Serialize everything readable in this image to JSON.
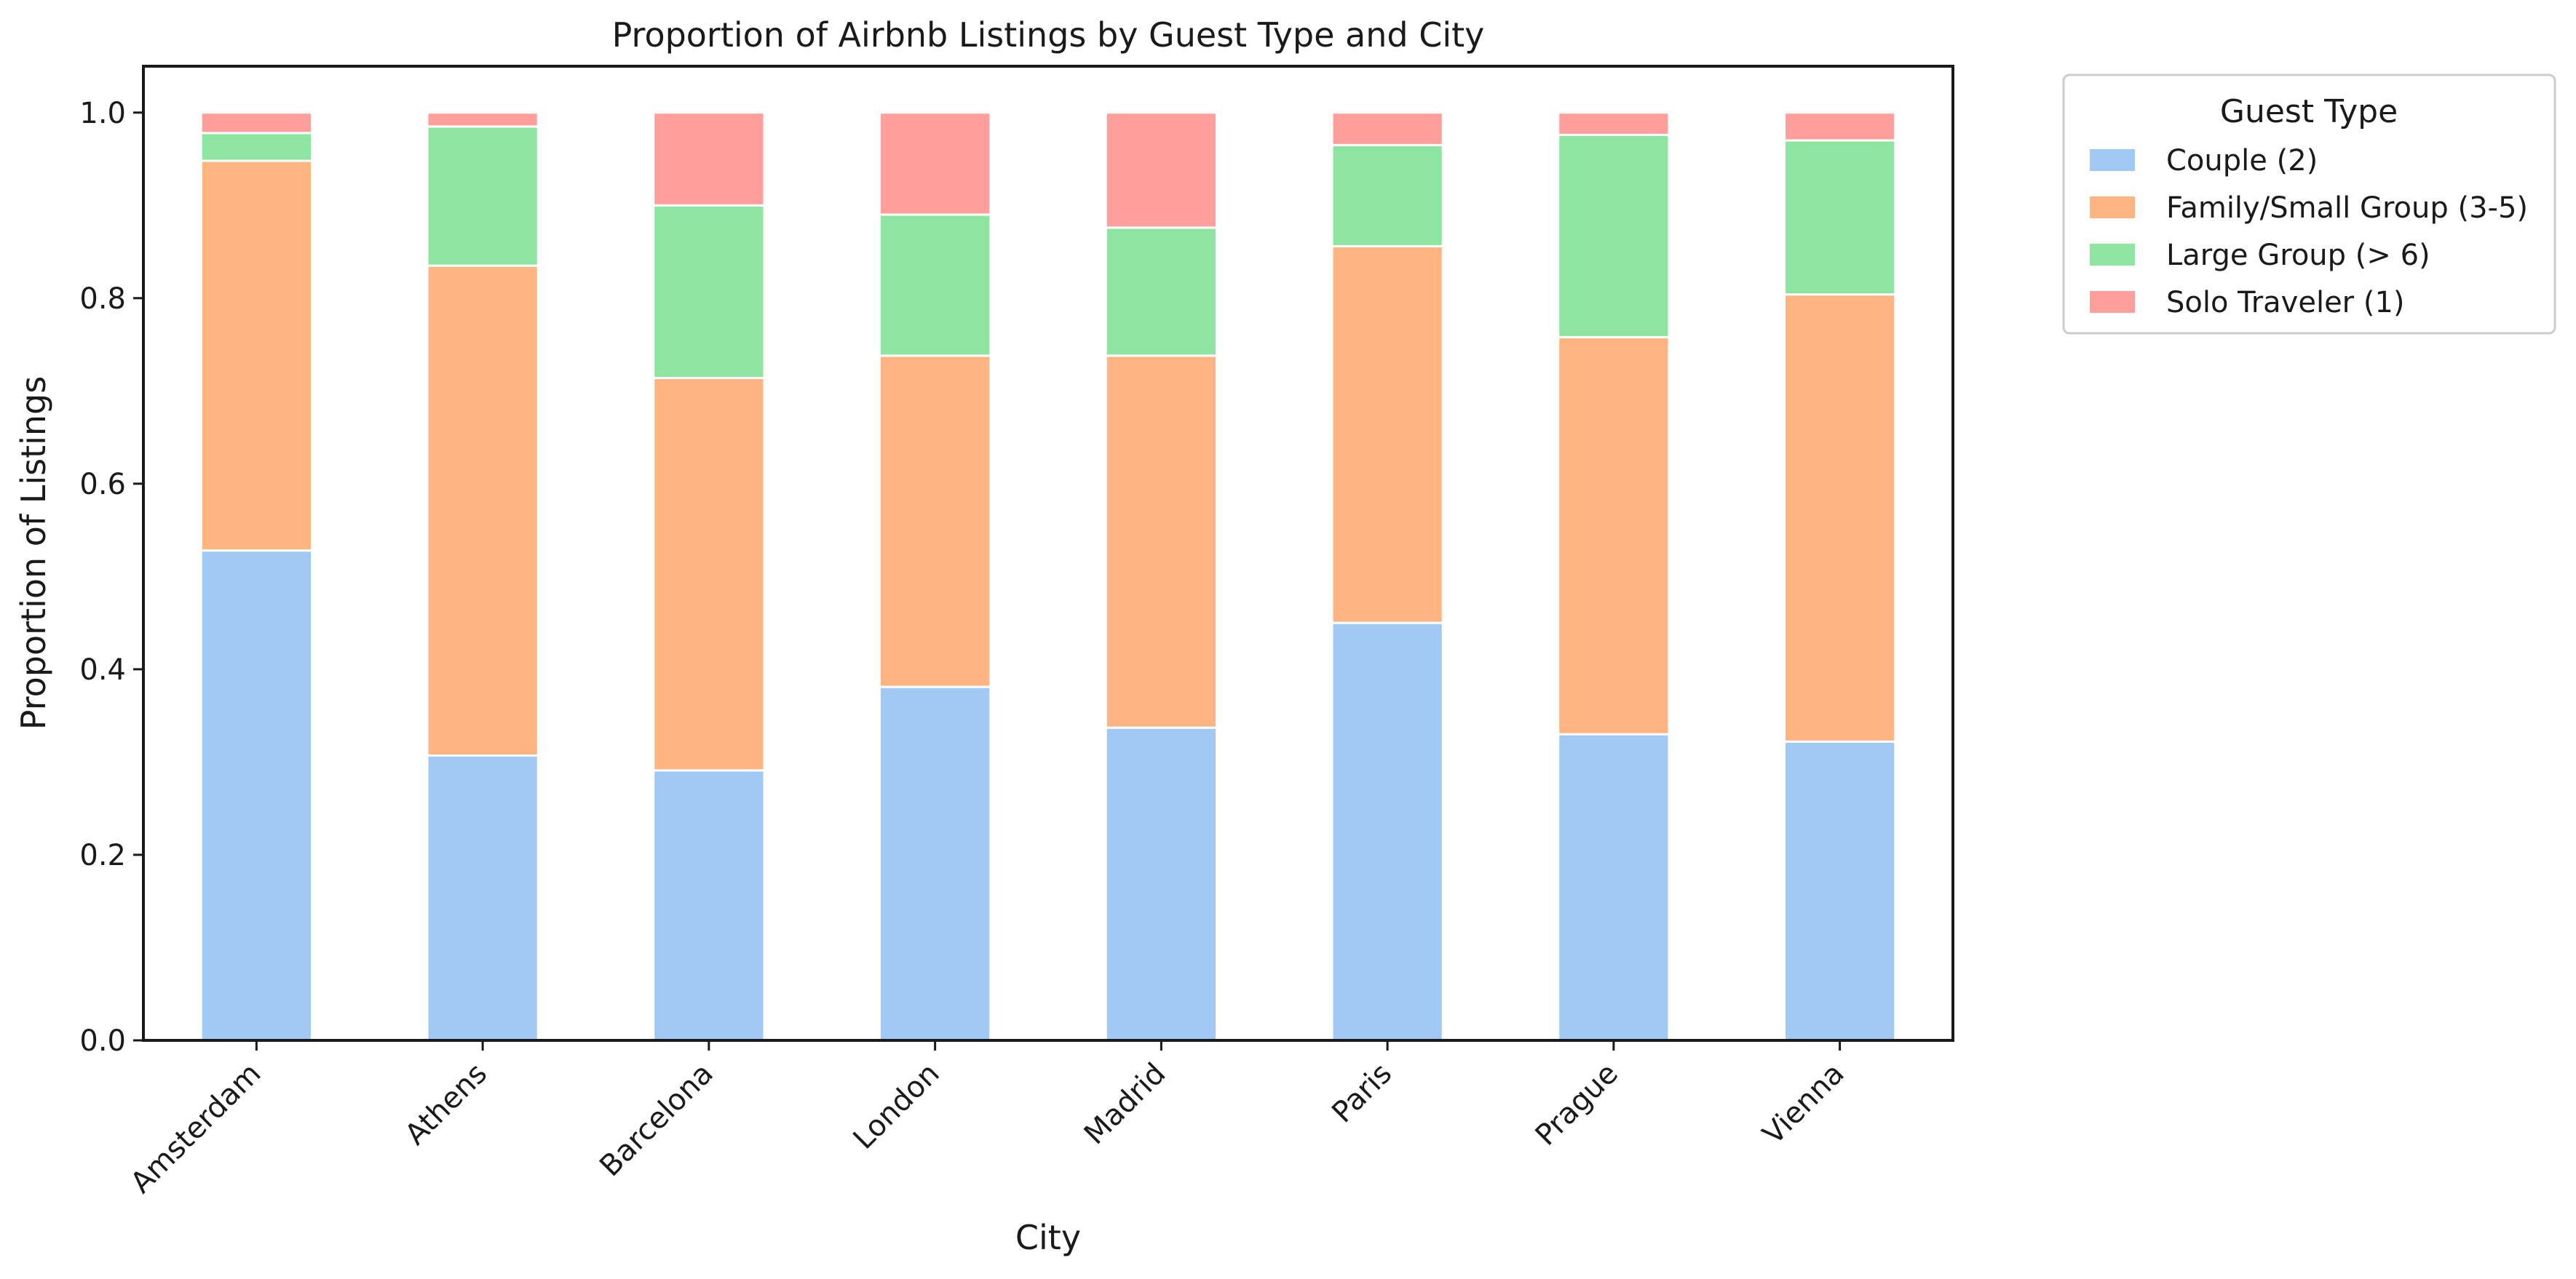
{
  "chart_data": {
    "type": "bar",
    "stacked": true,
    "title": "Proportion of Airbnb Listings by Guest Type and City",
    "xlabel": "City",
    "ylabel": "Proportion of Listings",
    "ylim": [
      0,
      1.05
    ],
    "yticks": [
      "0.0",
      "0.2",
      "0.4",
      "0.6",
      "0.8",
      "1.0"
    ],
    "grid": false,
    "legend": {
      "title": "Guest Type",
      "placement": "outside-top-right"
    },
    "categories": [
      "Amsterdam",
      "Athens",
      "Barcelona",
      "London",
      "Madrid",
      "Paris",
      "Prague",
      "Vienna"
    ],
    "series": [
      {
        "name": "Couple (2)",
        "color": "#a1c9f4",
        "values": [
          0.528,
          0.307,
          0.291,
          0.381,
          0.337,
          0.45,
          0.33,
          0.322
        ]
      },
      {
        "name": "Family/Small Group (3-5)",
        "color": "#ffb482",
        "values": [
          0.42,
          0.528,
          0.423,
          0.357,
          0.401,
          0.406,
          0.428,
          0.482
        ]
      },
      {
        "name": "Large Group (> 6)",
        "color": "#8de5a1",
        "values": [
          0.03,
          0.15,
          0.186,
          0.152,
          0.138,
          0.109,
          0.218,
          0.166
        ]
      },
      {
        "name": "Solo Traveler (1)",
        "color": "#ff9f9b",
        "values": [
          0.022,
          0.015,
          0.1,
          0.11,
          0.124,
          0.035,
          0.024,
          0.03
        ]
      }
    ]
  }
}
